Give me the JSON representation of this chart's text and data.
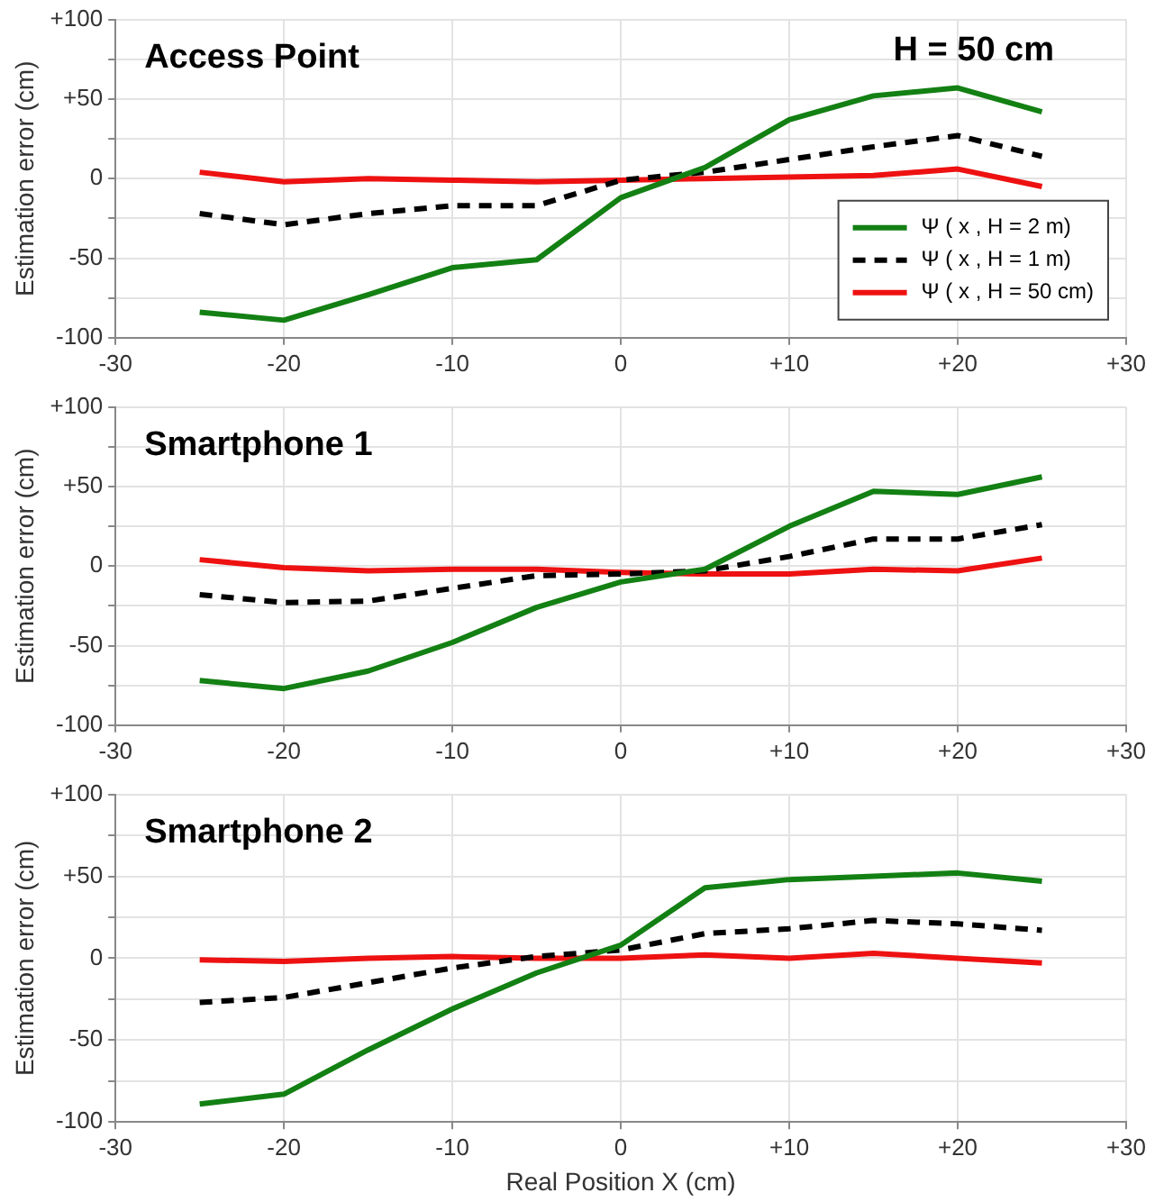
{
  "chart_data": [
    {
      "type": "line",
      "title": "Access Point",
      "ylabel": "Estimation error (cm)",
      "annotations": [
        "H = 50 cm"
      ],
      "x": [
        -25,
        -20,
        -15,
        -10,
        -5,
        0,
        5,
        10,
        15,
        20,
        25
      ],
      "series": [
        {
          "name": "Ψ ( x , H = 2 m)",
          "color": "#138013",
          "values": [
            -84,
            -89,
            -73,
            -56,
            -51,
            -12,
            7,
            37,
            52,
            57,
            42
          ]
        },
        {
          "name": "Ψ ( x , H = 1 m)",
          "color": "#000000",
          "line_style": "dashed",
          "values": [
            -22,
            -29,
            -22,
            -17,
            -17,
            -1,
            4,
            12,
            20,
            27,
            14
          ]
        },
        {
          "name": "Ψ ( x , H = 50 cm)",
          "color": "#ee1111",
          "values": [
            4,
            -2,
            0,
            -1,
            -2,
            -1,
            0,
            1,
            2,
            6,
            -5
          ]
        }
      ],
      "xlim": [
        -30,
        30
      ],
      "xticks": [
        -30,
        -20,
        -10,
        0,
        {
          "value": 10,
          "label": "+10"
        },
        {
          "value": 20,
          "label": "+20"
        },
        {
          "value": 30,
          "label": "+30"
        }
      ],
      "ylim": [
        -100,
        100
      ],
      "yticks": [
        -100,
        {
          "value": -75,
          "label": null
        },
        -50,
        {
          "value": -25,
          "label": null
        },
        0,
        {
          "value": 25,
          "label": null
        },
        {
          "value": 50,
          "label": "+50"
        },
        {
          "value": 75,
          "label": null
        },
        {
          "value": 100,
          "label": "+100"
        }
      ],
      "grid": true,
      "legend": "bottom right",
      "marker": "none",
      "line_style": "solid"
    },
    {
      "type": "line",
      "title": "Smartphone 1",
      "ylabel": "Estimation error (cm)",
      "x": [
        -25,
        -20,
        -15,
        -10,
        -5,
        0,
        5,
        10,
        15,
        20,
        25
      ],
      "series": [
        {
          "color": "#138013",
          "values": [
            -72,
            -77,
            -66,
            -48,
            -26,
            -10,
            -2,
            25,
            47,
            45,
            56
          ]
        },
        {
          "color": "#000000",
          "line_style": "dashed",
          "values": [
            -18,
            -23,
            -22,
            -14,
            -6,
            -5,
            -3,
            6,
            17,
            17,
            26
          ]
        },
        {
          "color": "#ee1111",
          "values": [
            4,
            -1,
            -3,
            -2,
            -2,
            -4,
            -5,
            -5,
            -2,
            -3,
            5
          ]
        }
      ],
      "xlim": [
        -30,
        30
      ],
      "xticks": [
        -30,
        -20,
        -10,
        0,
        {
          "value": 10,
          "label": "+10"
        },
        {
          "value": 20,
          "label": "+20"
        },
        {
          "value": 30,
          "label": "+30"
        }
      ],
      "ylim": [
        -100,
        100
      ],
      "yticks": [
        -100,
        {
          "value": -75,
          "label": null
        },
        -50,
        {
          "value": -25,
          "label": null
        },
        0,
        {
          "value": 25,
          "label": null
        },
        {
          "value": 50,
          "label": "+50"
        },
        {
          "value": 75,
          "label": null
        },
        {
          "value": 100,
          "label": "+100"
        }
      ],
      "grid": true,
      "marker": "none",
      "line_style": "solid"
    },
    {
      "type": "line",
      "title": "Smartphone 2",
      "xlabel": "Real Position X (cm)",
      "ylabel": "Estimation error (cm)",
      "x": [
        -25,
        -20,
        -15,
        -10,
        -5,
        0,
        5,
        10,
        15,
        20,
        25
      ],
      "series": [
        {
          "color": "#138013",
          "values": [
            -89,
            -83,
            -56,
            -31,
            -9,
            8,
            43,
            48,
            50,
            52,
            47
          ]
        },
        {
          "color": "#000000",
          "line_style": "dashed",
          "values": [
            -27,
            -24,
            -15,
            -6,
            1,
            5,
            15,
            18,
            23,
            21,
            17
          ]
        },
        {
          "color": "#ee1111",
          "values": [
            -1,
            -2,
            0,
            1,
            0,
            0,
            2,
            0,
            3,
            0,
            -3
          ]
        }
      ],
      "xlim": [
        -30,
        30
      ],
      "xticks": [
        -30,
        -20,
        -10,
        0,
        {
          "value": 10,
          "label": "+10"
        },
        {
          "value": 20,
          "label": "+20"
        },
        {
          "value": 30,
          "label": "+30"
        }
      ],
      "ylim": [
        -100,
        100
      ],
      "yticks": [
        -100,
        {
          "value": -75,
          "label": null
        },
        -50,
        {
          "value": -25,
          "label": null
        },
        0,
        {
          "value": 25,
          "label": null
        },
        {
          "value": 50,
          "label": "+50"
        },
        {
          "value": 75,
          "label": null
        },
        {
          "value": 100,
          "label": "+100"
        }
      ],
      "grid": true,
      "marker": "none",
      "line_style": "solid"
    }
  ]
}
